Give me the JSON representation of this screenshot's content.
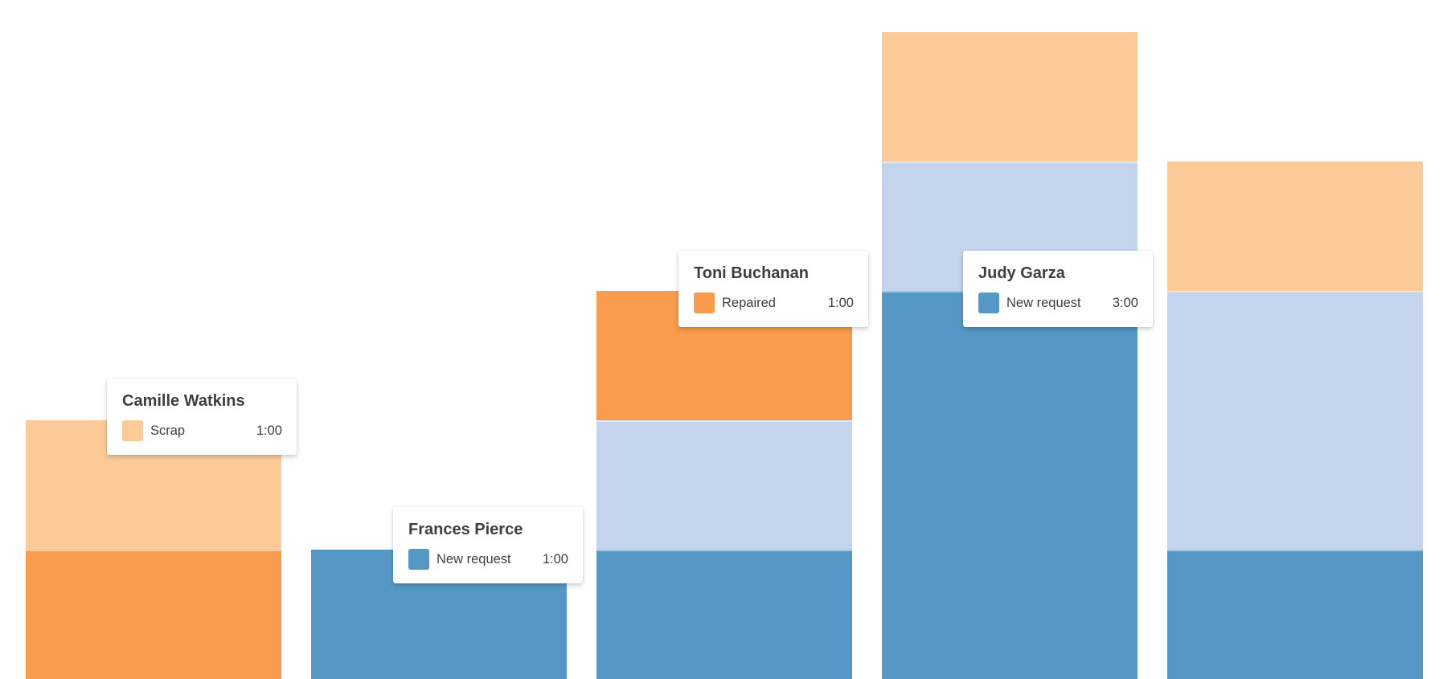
{
  "page": {
    "background": "#ffffff"
  },
  "chart_data": {
    "type": "bar",
    "variant": "stacked-column",
    "title": "",
    "unit": "hours",
    "value_format": "h:mm",
    "categories": [
      "Camille Watkins",
      "Frances Pierce",
      "Toni Buchanan",
      "Judy Garza",
      ""
    ],
    "series": [
      {
        "name": "New request",
        "color": "#5598C6",
        "values": [
          0,
          1,
          1,
          3,
          1
        ]
      },
      {
        "name": "",
        "color": "#C3D4EC",
        "values": [
          0,
          0,
          1,
          1,
          2
        ],
        "note": "series label not visible in screenshot"
      },
      {
        "name": "Repaired",
        "color": "#FA9B4D",
        "values": [
          1,
          0,
          1,
          0,
          0
        ]
      },
      {
        "name": "Scrap",
        "color": "#FBCA96",
        "values": [
          1,
          0,
          0,
          1,
          1
        ]
      }
    ],
    "stack_order": "bottom-to-top as listed",
    "axes": {
      "visible": false
    },
    "legend": {
      "visible": false
    },
    "ylim_visible_hours": [
      0,
      5
    ],
    "bars_clipped_at_bottom": true
  },
  "tooltips": [
    {
      "title": "Camille Watkins",
      "item_label": "Scrap",
      "item_value": "1:00",
      "swatch_color": "#FBCA96"
    },
    {
      "title": "Frances Pierce",
      "item_label": "New request",
      "item_value": "1:00",
      "swatch_color": "#5598C6"
    },
    {
      "title": "Toni Buchanan",
      "item_label": "Repaired",
      "item_value": "1:00",
      "swatch_color": "#FA9B4D"
    },
    {
      "title": "Judy Garza",
      "item_label": "New request",
      "item_value": "3:00",
      "swatch_color": "#5598C6"
    }
  ]
}
